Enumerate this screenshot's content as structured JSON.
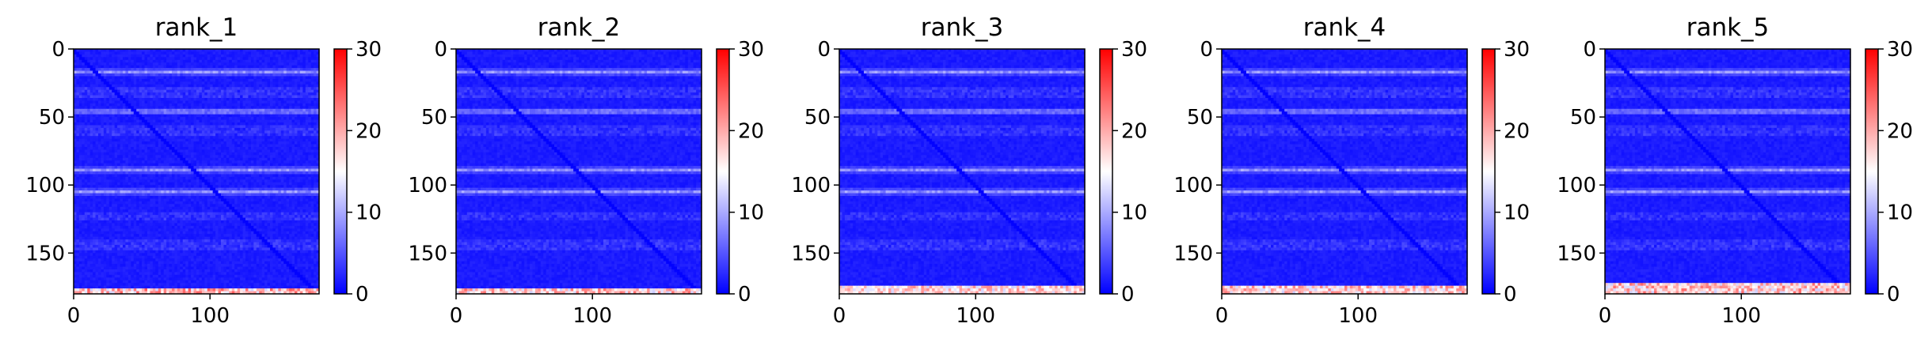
{
  "colorscale": {
    "low": "#0000ff",
    "mid": "#ffffff",
    "high": "#ff0000",
    "min": 0,
    "max": 30,
    "ticks": [
      "0",
      "10",
      "20",
      "30"
    ],
    "tick_values": [
      0,
      10,
      20,
      30
    ]
  },
  "chart_data": [
    {
      "type": "heatmap",
      "title": "rank_1",
      "xlim": [
        0,
        180
      ],
      "ylim": [
        180,
        0
      ],
      "xticks": [
        "0",
        "100"
      ],
      "xtick_values": [
        0,
        100
      ],
      "yticks": [
        "0",
        "50",
        "100",
        "150"
      ],
      "ytick_values": [
        0,
        50,
        100,
        150
      ],
      "colorbar_range": [
        0,
        30
      ],
      "bright_rows": [
        16,
        45,
        88,
        104
      ],
      "red_band_rows": [
        177,
        179
      ],
      "red_band_peak": 25
    },
    {
      "type": "heatmap",
      "title": "rank_2",
      "xlim": [
        0,
        180
      ],
      "ylim": [
        180,
        0
      ],
      "xticks": [
        "0",
        "100"
      ],
      "xtick_values": [
        0,
        100
      ],
      "yticks": [
        "0",
        "50",
        "100",
        "150"
      ],
      "ytick_values": [
        0,
        50,
        100,
        150
      ],
      "colorbar_range": [
        0,
        30
      ],
      "bright_rows": [
        16,
        45,
        88,
        104
      ],
      "red_band_rows": [
        177,
        179
      ],
      "red_band_peak": 24
    },
    {
      "type": "heatmap",
      "title": "rank_3",
      "xlim": [
        0,
        180
      ],
      "ylim": [
        180,
        0
      ],
      "xticks": [
        "0",
        "100"
      ],
      "xtick_values": [
        0,
        100
      ],
      "yticks": [
        "0",
        "50",
        "100",
        "150"
      ],
      "ytick_values": [
        0,
        50,
        100,
        150
      ],
      "colorbar_range": [
        0,
        30
      ],
      "bright_rows": [
        16,
        45,
        88,
        104
      ],
      "red_band_rows": [
        174,
        178
      ],
      "red_band_peak": 22
    },
    {
      "type": "heatmap",
      "title": "rank_4",
      "xlim": [
        0,
        180
      ],
      "ylim": [
        180,
        0
      ],
      "xticks": [
        "0",
        "100"
      ],
      "xtick_values": [
        0,
        100
      ],
      "yticks": [
        "0",
        "50",
        "100",
        "150"
      ],
      "ytick_values": [
        0,
        50,
        100,
        150
      ],
      "colorbar_range": [
        0,
        30
      ],
      "bright_rows": [
        16,
        45,
        88,
        104
      ],
      "red_band_rows": [
        174,
        178
      ],
      "red_band_peak": 23
    },
    {
      "type": "heatmap",
      "title": "rank_5",
      "xlim": [
        0,
        180
      ],
      "ylim": [
        180,
        0
      ],
      "xticks": [
        "0",
        "100"
      ],
      "xtick_values": [
        0,
        100
      ],
      "yticks": [
        "0",
        "50",
        "100",
        "150"
      ],
      "ytick_values": [
        0,
        50,
        100,
        150
      ],
      "colorbar_range": [
        0,
        30
      ],
      "bright_rows": [
        16,
        45,
        88,
        104
      ],
      "red_band_rows": [
        172,
        178
      ],
      "red_band_peak": 24
    }
  ]
}
